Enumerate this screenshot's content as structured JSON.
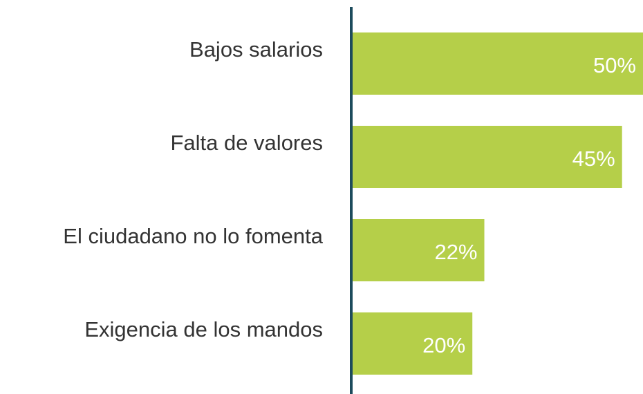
{
  "chart_data": {
    "type": "bar",
    "orientation": "horizontal",
    "categories": [
      "Bajos salarios",
      "Falta de valores",
      "El ciudadano no lo fomenta",
      "Exigencia de los mandos"
    ],
    "values": [
      50,
      45,
      22,
      20
    ],
    "value_labels": [
      "50%",
      "45%",
      "22%",
      "20%"
    ],
    "color": "#b5cf49",
    "xlim": [
      0,
      48.5
    ]
  }
}
